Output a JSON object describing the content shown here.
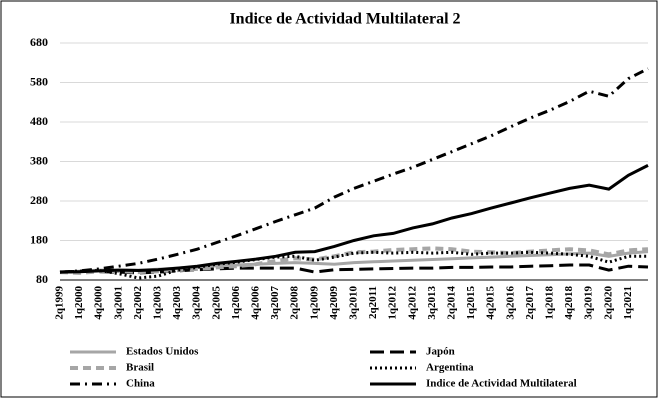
{
  "chart_data": {
    "type": "line",
    "title": "Indice de Actividad Multilateral 2",
    "categories": [
      "2q1999",
      "1q2000",
      "4q2000",
      "3q2001",
      "2q2002",
      "1q2003",
      "4q2003",
      "3q2004",
      "2q2005",
      "1q2006",
      "4q2006",
      "3q2007",
      "2q2008",
      "1q2009",
      "4q2009",
      "3q2010",
      "2q2011",
      "1q2012",
      "4q2012",
      "3q2013",
      "2q2014",
      "1q2015",
      "4q2015",
      "3q2016",
      "2q2017",
      "1q2018",
      "4q2018",
      "3q2019",
      "2q2020",
      "1q2021",
      null
    ],
    "ylim": [
      80,
      680
    ],
    "yticks": [
      80,
      180,
      280,
      380,
      480,
      580,
      680
    ],
    "grid": true,
    "series": [
      {
        "name": "Estados Unidos",
        "color": "#a6a6a6",
        "style": "solid",
        "width": 3,
        "values": [
          100,
          102,
          105,
          105,
          105,
          107,
          110,
          113,
          116,
          118,
          120,
          122,
          124,
          122,
          120,
          124,
          126,
          128,
          130,
          132,
          134,
          136,
          138,
          140,
          142,
          144,
          146,
          148,
          140,
          148,
          152
        ]
      },
      {
        "name": "Japón",
        "color": "#000000",
        "style": "longdash",
        "width": 3,
        "values": [
          100,
          102,
          101,
          100,
          98,
          100,
          103,
          106,
          108,
          110,
          110,
          110,
          110,
          100,
          106,
          107,
          108,
          109,
          110,
          110,
          112,
          112,
          113,
          113,
          115,
          116,
          118,
          118,
          105,
          115,
          113
        ]
      },
      {
        "name": "Brasil",
        "color": "#a6a6a6",
        "style": "dash",
        "width": 4,
        "values": [
          100,
          98,
          102,
          103,
          100,
          102,
          105,
          108,
          112,
          115,
          120,
          128,
          135,
          132,
          140,
          150,
          152,
          156,
          158,
          160,
          158,
          152,
          150,
          148,
          152,
          155,
          158,
          155,
          145,
          155,
          158
        ]
      },
      {
        "name": "Argentina",
        "color": "#000000",
        "style": "dot",
        "width": 3,
        "values": [
          100,
          102,
          104,
          96,
          85,
          90,
          105,
          112,
          120,
          125,
          132,
          138,
          140,
          130,
          138,
          148,
          150,
          148,
          150,
          148,
          150,
          145,
          148,
          148,
          150,
          148,
          145,
          140,
          125,
          140,
          140
        ]
      },
      {
        "name": "China",
        "color": "#000000",
        "style": "dashdot",
        "width": 3,
        "values": [
          100,
          103,
          108,
          115,
          122,
          133,
          145,
          158,
          175,
          192,
          210,
          228,
          245,
          262,
          290,
          312,
          330,
          348,
          365,
          385,
          405,
          425,
          445,
          468,
          490,
          510,
          532,
          558,
          545,
          590,
          615
        ]
      },
      {
        "name": "Indice de Actividad Multilateral",
        "color": "#000000",
        "style": "solid",
        "width": 3,
        "values": [
          100,
          101,
          103,
          105,
          104,
          106,
          110,
          115,
          122,
          127,
          133,
          140,
          150,
          152,
          165,
          180,
          192,
          198,
          212,
          222,
          237,
          248,
          262,
          275,
          288,
          300,
          312,
          320,
          310,
          345,
          370
        ]
      }
    ]
  }
}
